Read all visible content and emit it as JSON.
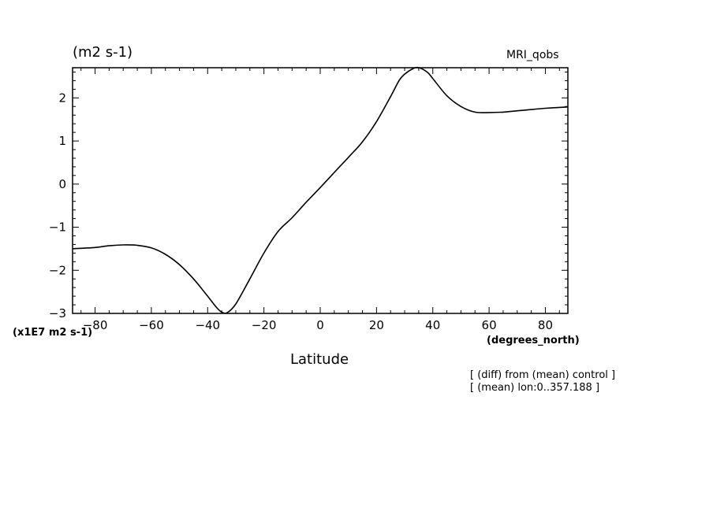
{
  "chart_data": {
    "type": "line",
    "title": "",
    "dataset_label": "MRI_qobs",
    "units_label": "(m2 s-1)",
    "scale_label": "(x1E7 m2 s-1)",
    "xlabel": "Latitude",
    "xunits": "(degrees_north)",
    "annotations": [
      "[ (diff) from (mean) control ]",
      "[ (mean) lon:0..357.188 ]"
    ],
    "xlim": [
      -88,
      88
    ],
    "ylim": [
      -3,
      2.7
    ],
    "x_ticks": [
      -80,
      -60,
      -40,
      -20,
      0,
      20,
      40,
      60,
      80
    ],
    "x_tick_labels": [
      "-80",
      "-60",
      "-40",
      "-20",
      "0",
      "20",
      "40",
      "60",
      "80"
    ],
    "y_ticks": [
      -3,
      -2,
      -1,
      0,
      1,
      2
    ],
    "y_tick_labels": [
      "-3",
      "-2",
      "-1",
      "0",
      "1",
      "2"
    ],
    "grid": false,
    "series": [
      {
        "x": [
          -88,
          -80,
          -75,
          -70,
          -65,
          -60,
          -55,
          -50,
          -45,
          -40,
          -37,
          -35,
          -33,
          -30,
          -25,
          -20,
          -15,
          -10,
          -5,
          0,
          5,
          10,
          15,
          20,
          25,
          28,
          30,
          33,
          35,
          38,
          40,
          45,
          50,
          55,
          60,
          65,
          70,
          75,
          80,
          85,
          88
        ],
        "y": [
          -1.5,
          -1.47,
          -1.43,
          -1.41,
          -1.42,
          -1.48,
          -1.63,
          -1.87,
          -2.2,
          -2.6,
          -2.85,
          -2.97,
          -2.98,
          -2.78,
          -2.2,
          -1.6,
          -1.1,
          -0.78,
          -0.42,
          -0.08,
          0.27,
          0.62,
          0.98,
          1.45,
          2.03,
          2.4,
          2.55,
          2.68,
          2.7,
          2.6,
          2.45,
          2.05,
          1.8,
          1.67,
          1.66,
          1.67,
          1.7,
          1.73,
          1.76,
          1.78,
          1.79
        ]
      }
    ]
  }
}
